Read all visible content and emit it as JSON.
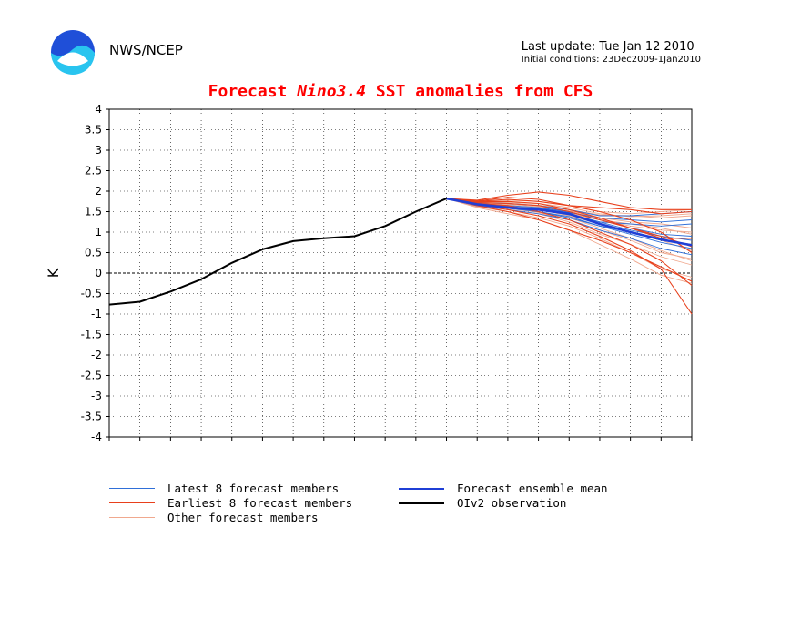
{
  "header": {
    "org": "NWS/NCEP",
    "last_update": "Last update: Tue Jan 12 2010",
    "initial_conditions": "Initial conditions: 23Dec2009-1Jan2010"
  },
  "chart_data": {
    "type": "line",
    "title_prefix": "Forecast ",
    "title_italic": "Nino3.4",
    "title_suffix": " SST anomalies from CFS",
    "ylabel": "K",
    "xlabel": "",
    "ylim": [
      -4,
      4
    ],
    "yticks": [
      "4",
      "3.5",
      "3",
      "2.5",
      "2",
      "1.5",
      "1",
      "0.5",
      "0",
      "-0.5",
      "-1",
      "-1.5",
      "-2",
      "-2.5",
      "-3",
      "-3.5",
      "-4"
    ],
    "xlim": [
      0,
      19
    ],
    "grid": true,
    "observation": {
      "name": "OIv2 observation",
      "color": "#000000",
      "x": [
        0,
        1,
        2,
        3,
        4,
        5,
        6,
        7,
        8,
        9,
        10,
        11
      ],
      "y": [
        -0.77,
        -0.7,
        -0.45,
        -0.15,
        0.25,
        0.58,
        0.78,
        0.85,
        0.9,
        1.15,
        1.5,
        1.82
      ]
    },
    "ensemble_mean": {
      "name": "Forecast ensemble mean",
      "color": "#1f3fd6",
      "x": [
        11,
        12,
        13,
        14,
        15,
        16,
        17,
        18,
        19
      ],
      "y": [
        1.82,
        1.68,
        1.6,
        1.55,
        1.45,
        1.2,
        1.0,
        0.82,
        0.68
      ]
    },
    "latest_members": {
      "name": "Latest 8 forecast members",
      "color": "#2f6fd8",
      "x": [
        11,
        12,
        13,
        14,
        15,
        16,
        17,
        18,
        19
      ],
      "series": [
        [
          1.82,
          1.7,
          1.65,
          1.6,
          1.5,
          1.3,
          1.1,
          0.95,
          0.9
        ],
        [
          1.82,
          1.65,
          1.6,
          1.55,
          1.45,
          1.25,
          1.2,
          1.15,
          1.2
        ],
        [
          1.82,
          1.68,
          1.62,
          1.58,
          1.48,
          1.35,
          1.3,
          1.25,
          1.3
        ],
        [
          1.82,
          1.72,
          1.7,
          1.65,
          1.55,
          1.4,
          1.4,
          1.45,
          1.5
        ],
        [
          1.82,
          1.66,
          1.58,
          1.5,
          1.35,
          1.15,
          1.0,
          0.8,
          0.7
        ],
        [
          1.82,
          1.64,
          1.55,
          1.45,
          1.3,
          1.05,
          0.85,
          0.6,
          0.45
        ],
        [
          1.82,
          1.7,
          1.63,
          1.55,
          1.42,
          1.25,
          1.05,
          0.9,
          0.8
        ],
        [
          1.82,
          1.67,
          1.6,
          1.5,
          1.38,
          1.15,
          0.95,
          0.75,
          0.6
        ]
      ]
    },
    "earliest_members": {
      "name": "Earliest 8 forecast members",
      "color": "#e8401c",
      "x": [
        11,
        12,
        13,
        14,
        15,
        16,
        17,
        18,
        19
      ],
      "series": [
        [
          1.82,
          1.78,
          1.9,
          1.98,
          1.9,
          1.75,
          1.6,
          1.55,
          1.55
        ],
        [
          1.82,
          1.75,
          1.8,
          1.75,
          1.65,
          1.5,
          1.3,
          1.0,
          0.5
        ],
        [
          1.82,
          1.7,
          1.65,
          1.5,
          1.3,
          1.0,
          0.7,
          0.3,
          -0.3
        ],
        [
          1.82,
          1.68,
          1.55,
          1.4,
          1.2,
          0.9,
          0.55,
          0.1,
          -1.0
        ],
        [
          1.82,
          1.72,
          1.7,
          1.65,
          1.5,
          1.3,
          1.1,
          0.85,
          0.85
        ],
        [
          1.82,
          1.76,
          1.85,
          1.8,
          1.65,
          1.6,
          1.55,
          1.45,
          1.5
        ],
        [
          1.82,
          1.65,
          1.5,
          1.3,
          1.05,
          0.8,
          0.5,
          0.15,
          -0.2
        ],
        [
          1.82,
          1.74,
          1.75,
          1.7,
          1.55,
          1.35,
          1.1,
          0.9,
          0.65
        ]
      ]
    },
    "other_members": {
      "name": "Other forecast members",
      "color": "#f0a88e",
      "x": [
        11,
        12,
        13,
        14,
        15,
        16,
        17,
        18,
        19
      ],
      "series": [
        [
          1.82,
          1.75,
          1.78,
          1.75,
          1.65,
          1.5,
          1.45,
          1.5,
          1.55
        ],
        [
          1.82,
          1.7,
          1.68,
          1.62,
          1.52,
          1.35,
          1.25,
          1.2,
          1.1
        ],
        [
          1.82,
          1.66,
          1.6,
          1.5,
          1.35,
          1.1,
          0.85,
          0.55,
          0.3
        ],
        [
          1.82,
          1.62,
          1.5,
          1.35,
          1.15,
          0.85,
          0.5,
          0.1,
          -0.1
        ],
        [
          1.82,
          1.73,
          1.72,
          1.7,
          1.6,
          1.45,
          1.38,
          1.4,
          1.45
        ],
        [
          1.82,
          1.68,
          1.62,
          1.55,
          1.4,
          1.2,
          1.0,
          0.8,
          0.55
        ],
        [
          1.82,
          1.64,
          1.55,
          1.45,
          1.25,
          0.95,
          0.7,
          0.4,
          0.2
        ],
        [
          1.82,
          1.7,
          1.66,
          1.58,
          1.45,
          1.3,
          1.15,
          1.05,
          1.0
        ],
        [
          1.82,
          1.6,
          1.45,
          1.3,
          1.05,
          0.7,
          0.35,
          -0.05,
          -0.25
        ],
        [
          1.82,
          1.72,
          1.7,
          1.66,
          1.55,
          1.42,
          1.4,
          1.35,
          1.4
        ],
        [
          1.82,
          1.67,
          1.58,
          1.48,
          1.3,
          1.05,
          0.8,
          0.5,
          0.35
        ],
        [
          1.82,
          1.71,
          1.64,
          1.6,
          1.48,
          1.3,
          1.2,
          1.1,
          0.95
        ]
      ]
    },
    "legend": {
      "placement": "bottom",
      "entries": [
        {
          "label": "Latest 8 forecast members",
          "color": "#2f6fd8",
          "width": 1
        },
        {
          "label": "Forecast ensemble mean",
          "color": "#1f3fd6",
          "width": 2.5
        },
        {
          "label": "Earliest 8 forecast members",
          "color": "#e8401c",
          "width": 1
        },
        {
          "label": "OIv2 observation",
          "color": "#000000",
          "width": 2
        },
        {
          "label": "Other forecast members",
          "color": "#f0a88e",
          "width": 1
        }
      ]
    }
  }
}
